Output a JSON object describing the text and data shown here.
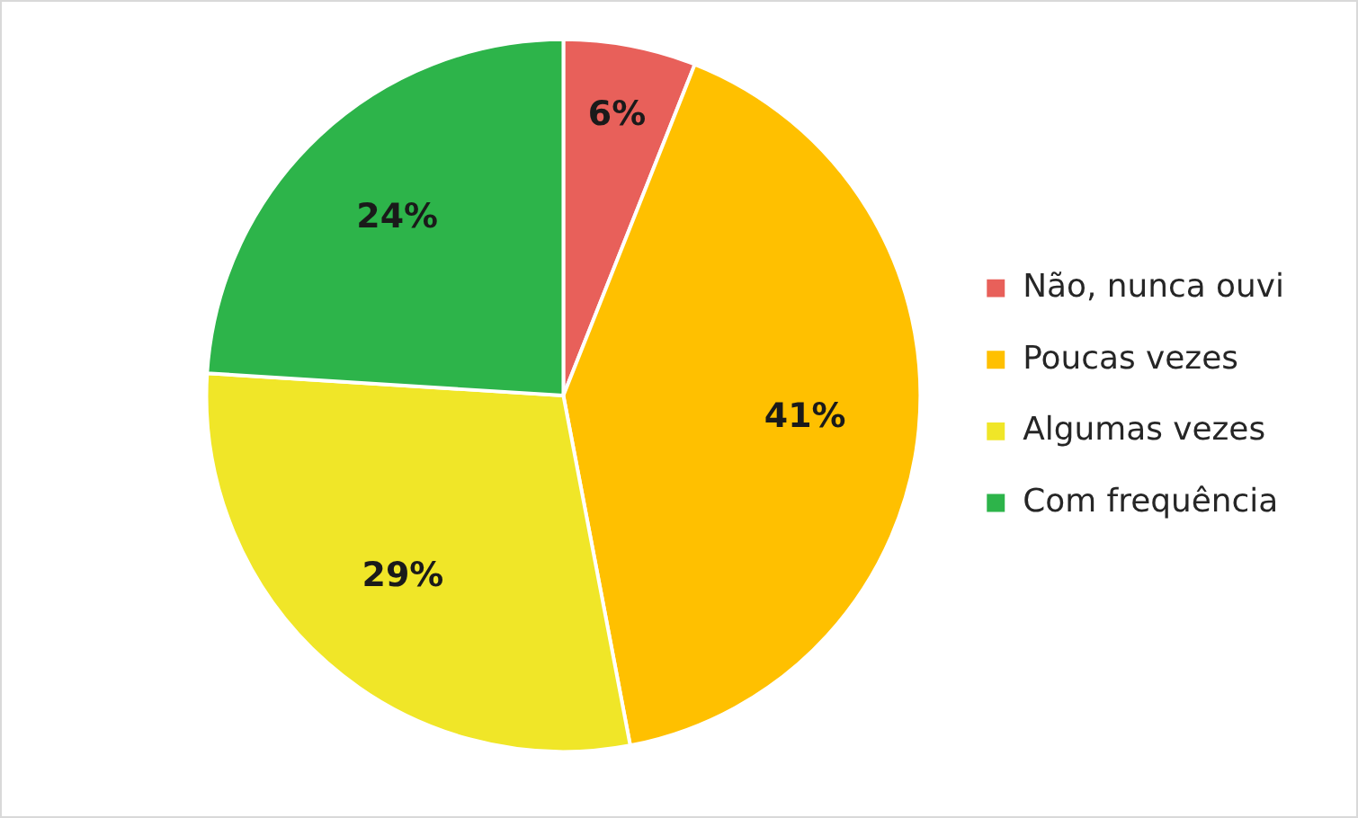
{
  "chart_data": {
    "type": "pie",
    "categories": [
      "Não, nunca ouvi",
      "Poucas vezes",
      "Algumas vezes",
      "Com frequência"
    ],
    "values": [
      6,
      41,
      29,
      24
    ],
    "colors": [
      "#e8605a",
      "#ffc000",
      "#f0e628",
      "#2db44a"
    ],
    "value_labels": [
      "6%",
      "41%",
      "29%",
      "24%"
    ],
    "legend": "right"
  }
}
